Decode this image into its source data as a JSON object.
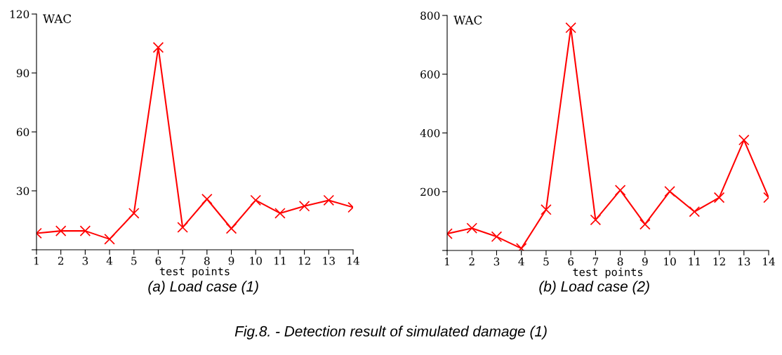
{
  "chart_data": [
    {
      "type": "line",
      "xlabel": "test points",
      "ylabel": "WAC",
      "x": [
        1,
        2,
        3,
        4,
        5,
        6,
        7,
        8,
        9,
        10,
        11,
        12,
        13,
        14
      ],
      "series": [
        {
          "color": "#ff0000",
          "values": [
            8.4,
            9.6,
            9.6,
            5.4,
            18.6,
            103,
            11.4,
            25.8,
            10.8,
            25.2,
            18.6,
            22.2,
            25.2,
            21.6
          ]
        }
      ],
      "xlim": [
        1,
        14
      ],
      "xticks": [
        1,
        2,
        3,
        4,
        5,
        6,
        7,
        8,
        9,
        10,
        11,
        12,
        13,
        14
      ],
      "ylim": [
        0,
        120
      ],
      "yticks": [
        {
          "value": 0,
          "label": null
        },
        30,
        60,
        90,
        120
      ],
      "marker": "cross",
      "line_style": "solid",
      "grid": false,
      "legend": false,
      "annotations": [
        "(a) Load case (1)"
      ]
    },
    {
      "type": "line",
      "xlabel": "test points",
      "ylabel": "WAC",
      "x": [
        1,
        2,
        3,
        4,
        5,
        6,
        7,
        8,
        9,
        10,
        11,
        12,
        13,
        14
      ],
      "series": [
        {
          "color": "#ff0000",
          "values": [
            57,
            76,
            47,
            7,
            139,
            758,
            104,
            205,
            89,
            201,
            132,
            180,
            376,
            180
          ]
        }
      ],
      "xlim": [
        1,
        14
      ],
      "xticks": [
        1,
        2,
        3,
        4,
        5,
        6,
        7,
        8,
        9,
        10,
        11,
        12,
        13,
        14
      ],
      "ylim": [
        0,
        800
      ],
      "yticks": [
        {
          "value": 0,
          "label": null
        },
        200,
        400,
        600,
        800
      ],
      "marker": "cross",
      "line_style": "solid",
      "grid": false,
      "legend": false,
      "annotations": [
        "(b) Load case (2)",
        "Fig.8. - Detection result of simulated damage (1)"
      ]
    }
  ]
}
